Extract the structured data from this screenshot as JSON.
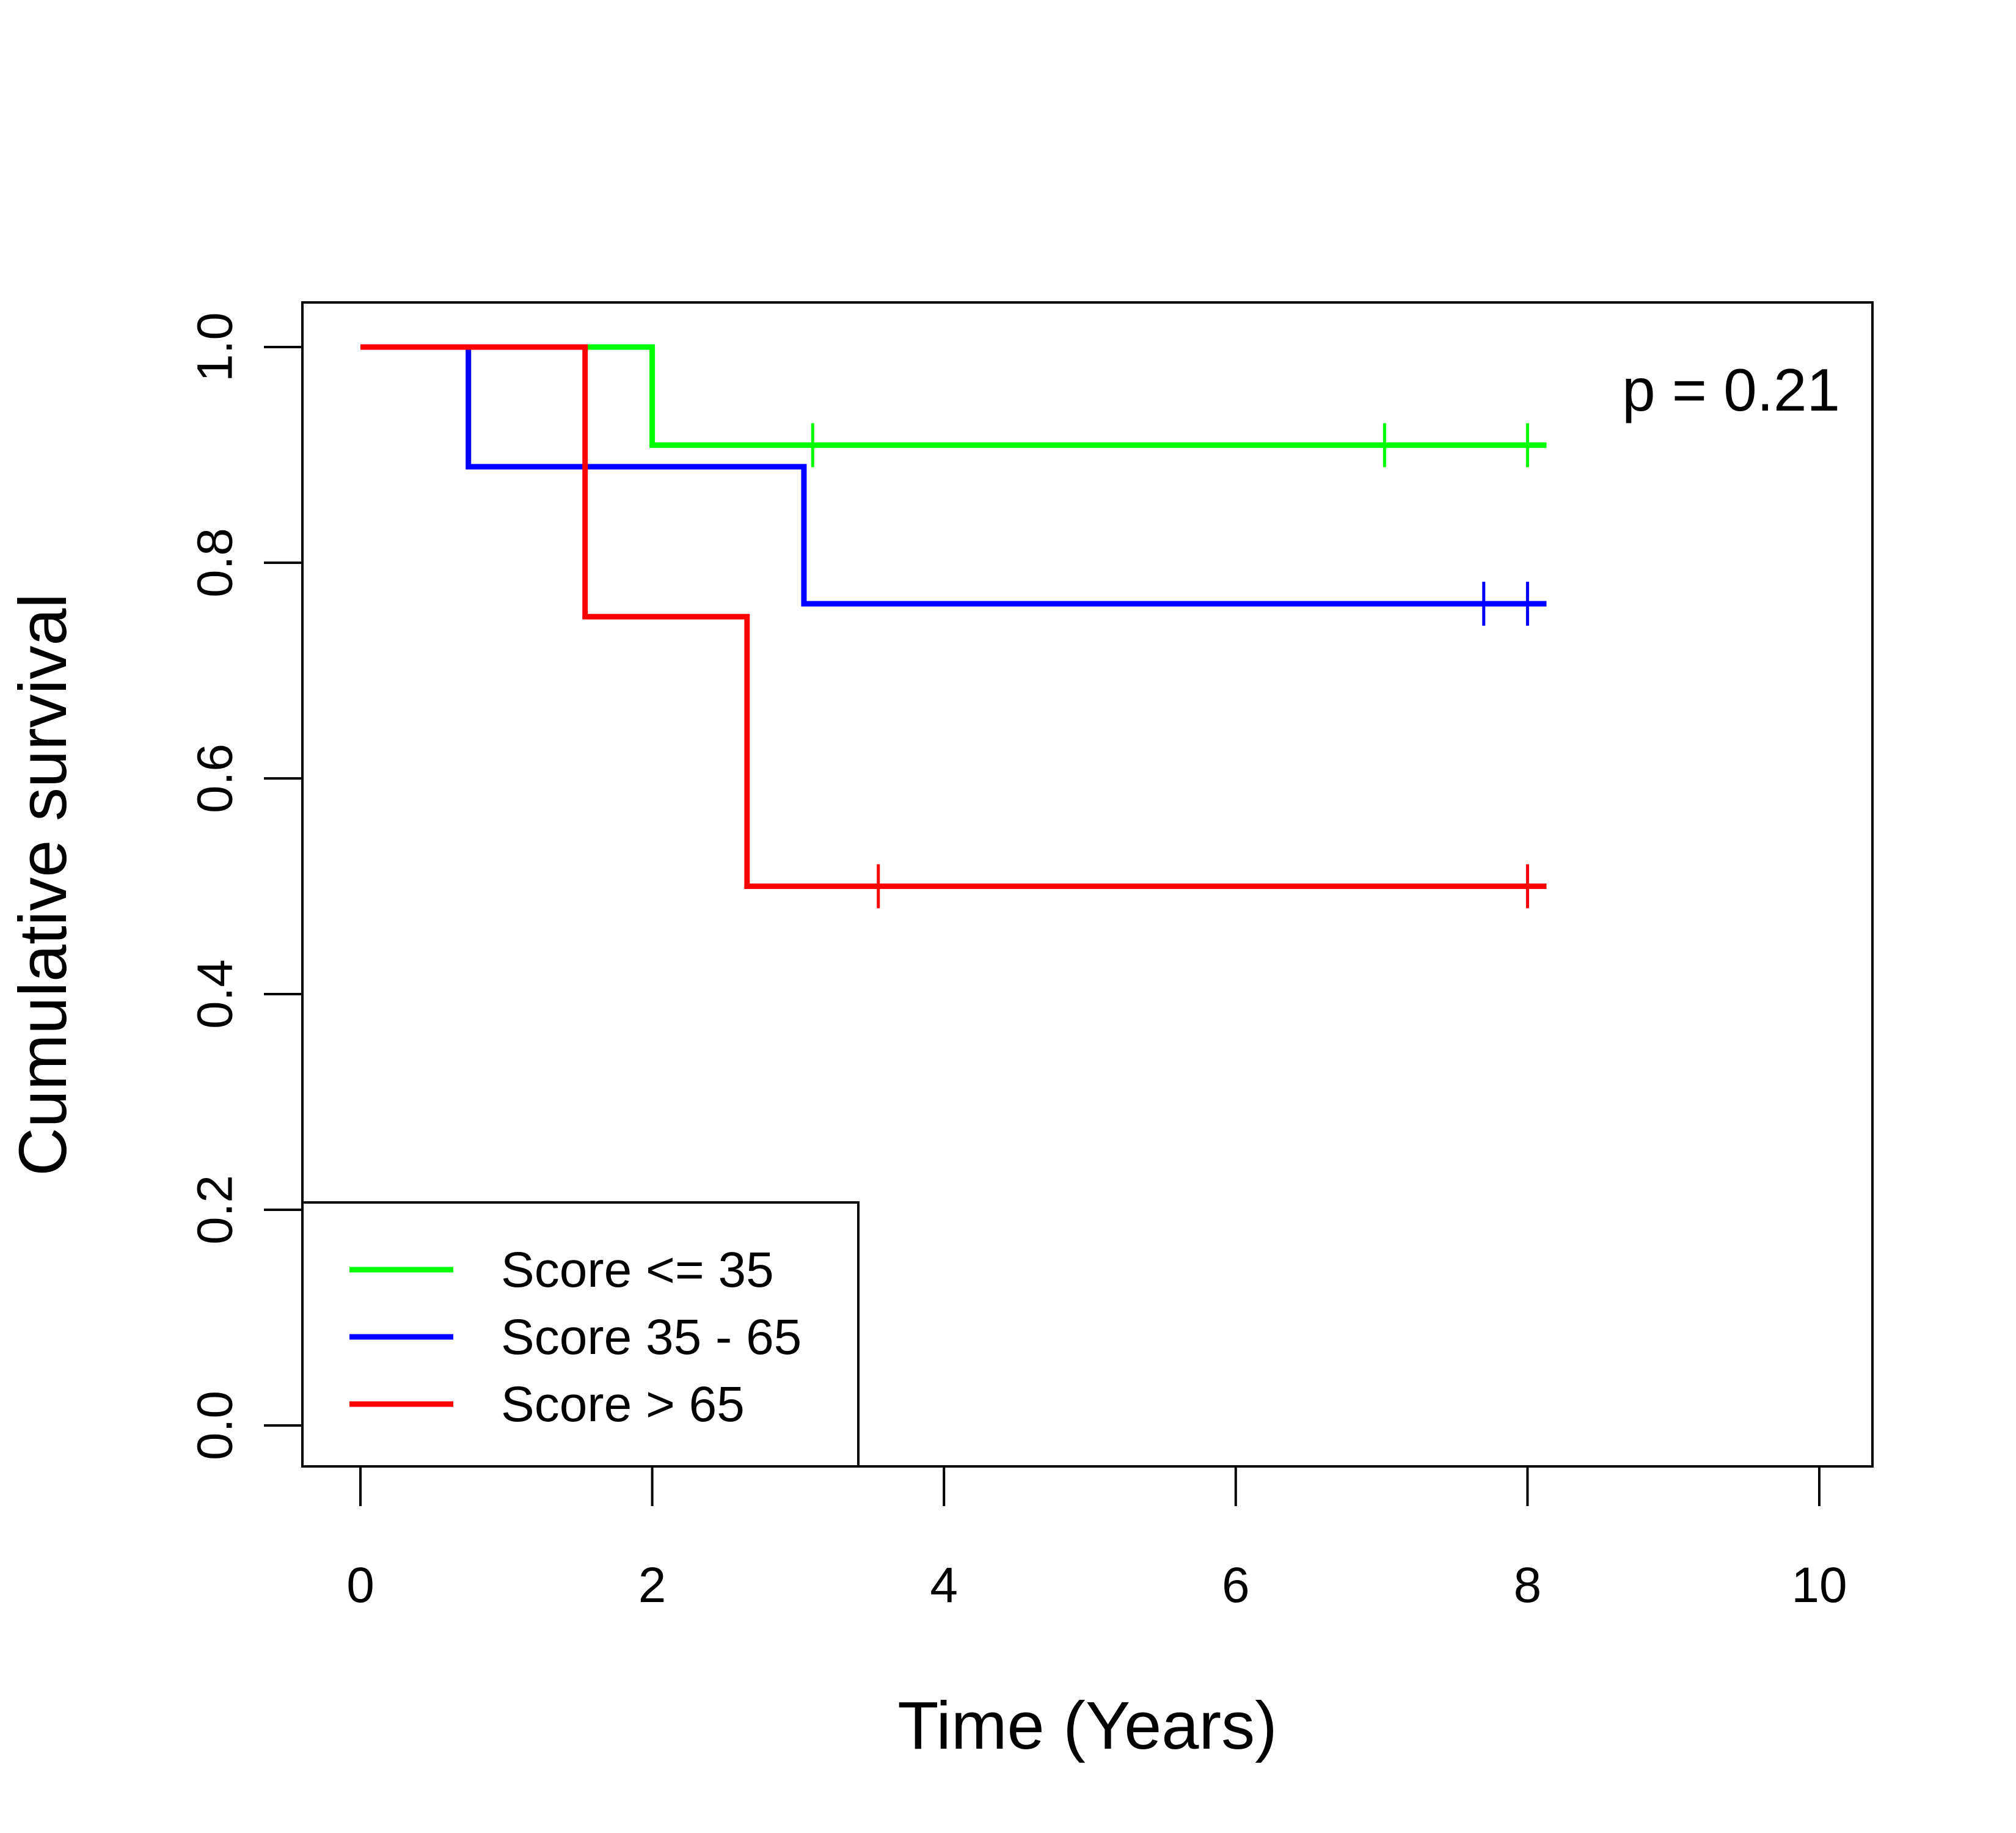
{
  "chart_data": {
    "type": "line",
    "title": "",
    "xlabel": "Time (Years)",
    "ylabel": "Cumulative survival",
    "xlim": [
      0,
      10
    ],
    "ylim": [
      0,
      1
    ],
    "xticks": [
      "0",
      "2",
      "4",
      "6",
      "8",
      "10"
    ],
    "yticks": [
      "0.0",
      "0.2",
      "0.4",
      "0.6",
      "0.8",
      "1.0"
    ],
    "grid": false,
    "legend_position": "bottom-left",
    "annotation": "p = 0.21",
    "series": [
      {
        "name": "Score <= 35",
        "color": "#00ff00",
        "steps": [
          [
            0,
            1.0
          ],
          [
            2.0,
            0.909
          ],
          [
            8.13,
            0.909
          ]
        ],
        "censored": [
          [
            3.1,
            0.909
          ],
          [
            7.02,
            0.909
          ],
          [
            8.0,
            0.909
          ]
        ]
      },
      {
        "name": "Score 35 - 65",
        "color": "#0000ff",
        "steps": [
          [
            0,
            1.0
          ],
          [
            0.74,
            0.889
          ],
          [
            3.04,
            0.762
          ],
          [
            8.13,
            0.762
          ]
        ],
        "censored": [
          [
            7.7,
            0.762
          ],
          [
            8.0,
            0.762
          ]
        ]
      },
      {
        "name": "Score > 65",
        "color": "#ff0000",
        "steps": [
          [
            0,
            1.0
          ],
          [
            1.54,
            0.75
          ],
          [
            2.65,
            0.5
          ],
          [
            8.13,
            0.5
          ]
        ],
        "censored": [
          [
            3.55,
            0.5
          ],
          [
            8.0,
            0.5
          ]
        ]
      }
    ]
  }
}
